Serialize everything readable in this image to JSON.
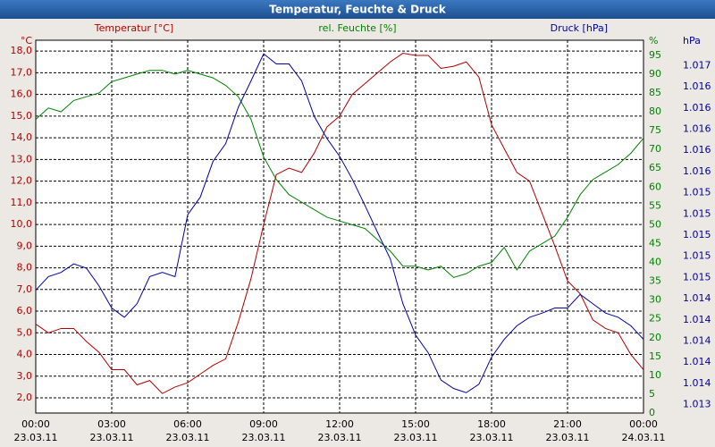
{
  "chart_data": {
    "type": "line",
    "title": "Temperatur, Feuchte & Druck",
    "ylabel": "Temperatur [°C]",
    "y2label": "rel. Feuchte [%]",
    "y3label": "Druck [hPa]",
    "yunit": "°C",
    "y2unit": "%",
    "y3unit": "hPa",
    "x": [
      0,
      0.5,
      1,
      1.5,
      2,
      2.5,
      3,
      3.5,
      4,
      4.5,
      5,
      5.5,
      6,
      6.5,
      7,
      7.5,
      8,
      8.5,
      9,
      9.5,
      10,
      10.5,
      11,
      11.5,
      12,
      12.5,
      13,
      13.5,
      14,
      14.5,
      15,
      15.5,
      16,
      16.5,
      17,
      17.5,
      18,
      18.5,
      19,
      19.5,
      20,
      20.5,
      21,
      21.5,
      22,
      22.5,
      23,
      23.5,
      24
    ],
    "xlim": [
      0,
      24
    ],
    "xticks": [
      {
        "value": 0,
        "label": "00:00"
      },
      {
        "value": 3,
        "label": "03:00"
      },
      {
        "value": 6,
        "label": "06:00"
      },
      {
        "value": 9,
        "label": "09:00"
      },
      {
        "value": 12,
        "label": "12:00"
      },
      {
        "value": 15,
        "label": "15:00"
      },
      {
        "value": 18,
        "label": "18:00"
      },
      {
        "value": 21,
        "label": "21:00"
      },
      {
        "value": 24,
        "label": "00:00"
      }
    ],
    "xtick_dates": [
      "23.03.11",
      "23.03.11",
      "23.03.11",
      "23.03.11",
      "23.03.11",
      "23.03.11",
      "23.03.11",
      "23.03.11",
      "24.03.11"
    ],
    "ylim": [
      1.3,
      18.5
    ],
    "yticks": [
      {
        "value": 2,
        "label": "2,0"
      },
      {
        "value": 3,
        "label": "3,0"
      },
      {
        "value": 4,
        "label": "4,0"
      },
      {
        "value": 5,
        "label": "5,0"
      },
      {
        "value": 6,
        "label": "6,0"
      },
      {
        "value": 7,
        "label": "7,0"
      },
      {
        "value": 8,
        "label": "8,0"
      },
      {
        "value": 9,
        "label": "9,0"
      },
      {
        "value": 10,
        "label": "10,0"
      },
      {
        "value": 11,
        "label": "11,0"
      },
      {
        "value": 12,
        "label": "12,0"
      },
      {
        "value": 13,
        "label": "13,0"
      },
      {
        "value": 14,
        "label": "14,0"
      },
      {
        "value": 15,
        "label": "15,0"
      },
      {
        "value": 16,
        "label": "16,0"
      },
      {
        "value": 17,
        "label": "17,0"
      },
      {
        "value": 18,
        "label": "18,0"
      }
    ],
    "y2lim": [
      0,
      99
    ],
    "y2ticks": [
      0,
      5,
      10,
      15,
      20,
      25,
      30,
      35,
      40,
      45,
      50,
      55,
      60,
      65,
      70,
      75,
      80,
      85,
      90,
      95
    ],
    "y3lim": [
      1.0129,
      1.0173
    ],
    "y3ticks": [
      {
        "value": 1.017,
        "label": "1.017"
      },
      {
        "value": 1.01675,
        "label": "1.016"
      },
      {
        "value": 1.0165,
        "label": "1.016"
      },
      {
        "value": 1.01625,
        "label": "1.016"
      },
      {
        "value": 1.016,
        "label": "1.016"
      },
      {
        "value": 1.01575,
        "label": "1.016"
      },
      {
        "value": 1.0155,
        "label": "1.015"
      },
      {
        "value": 1.01525,
        "label": "1.015"
      },
      {
        "value": 1.015,
        "label": "1.015"
      },
      {
        "value": 1.01475,
        "label": "1.015"
      },
      {
        "value": 1.0145,
        "label": "1.015"
      },
      {
        "value": 1.01425,
        "label": "1.014"
      },
      {
        "value": 1.014,
        "label": "1.014"
      },
      {
        "value": 1.01375,
        "label": "1.014"
      },
      {
        "value": 1.0135,
        "label": "1.014"
      },
      {
        "value": 1.01325,
        "label": "1.014"
      },
      {
        "value": 1.013,
        "label": "1.013"
      }
    ],
    "grid": true,
    "series": [
      {
        "name": "Temperatur [°C]",
        "color": "#b00000",
        "axis": "y",
        "values": [
          5.4,
          5.0,
          5.2,
          5.2,
          4.6,
          4.1,
          3.3,
          3.3,
          2.6,
          2.8,
          2.2,
          2.5,
          2.7,
          3.1,
          3.5,
          3.8,
          5.5,
          7.5,
          10.0,
          12.3,
          12.6,
          12.4,
          13.3,
          14.5,
          15.0,
          16.0,
          16.5,
          17.0,
          17.5,
          17.9,
          17.8,
          17.8,
          17.2,
          17.3,
          17.5,
          16.8,
          14.6,
          13.5,
          12.4,
          12.0,
          10.5,
          9.0,
          7.4,
          6.8,
          5.6,
          5.2,
          5.0,
          4.0,
          3.3
        ]
      },
      {
        "name": "rel. Feuchte [%]",
        "color": "#008000",
        "axis": "y2",
        "values": [
          78,
          81,
          80,
          83,
          84,
          85,
          88,
          89,
          90,
          91,
          91,
          90,
          91,
          90,
          89,
          87,
          84,
          78,
          68,
          62,
          58,
          56,
          54,
          52,
          51,
          50,
          49,
          46,
          43,
          39,
          39,
          38,
          39,
          36,
          37,
          39,
          40,
          44,
          38,
          43,
          45,
          47,
          52,
          58,
          62,
          64,
          66,
          69,
          73
        ]
      },
      {
        "name": "Druck [hPa]",
        "color": "#0000a0",
        "axis": "y3",
        "values": [
          1.01435,
          1.01451,
          1.01456,
          1.01466,
          1.01461,
          1.0144,
          1.01414,
          1.01403,
          1.01419,
          1.01451,
          1.01456,
          1.01451,
          1.01524,
          1.01545,
          1.01587,
          1.01608,
          1.01651,
          1.01682,
          1.01714,
          1.01702,
          1.01702,
          1.01682,
          1.0164,
          1.01614,
          1.01593,
          1.01566,
          1.01535,
          1.01503,
          1.01472,
          1.01419,
          1.01382,
          1.01361,
          1.01329,
          1.01319,
          1.01314,
          1.01324,
          1.01356,
          1.01377,
          1.01393,
          1.01403,
          1.01408,
          1.01414,
          1.01414,
          1.0143,
          1.01419,
          1.01408,
          1.01403,
          1.01393,
          1.01377
        ]
      }
    ]
  }
}
